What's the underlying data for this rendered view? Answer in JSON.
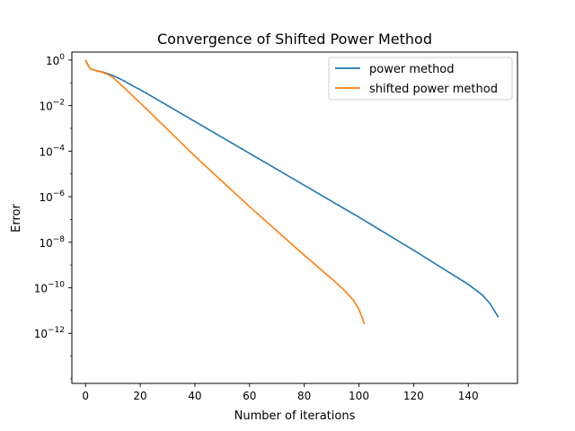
{
  "chart_data": {
    "type": "line",
    "title": "Convergence of Shifted Power Method",
    "xlabel": "Number of iterations",
    "ylabel": "Error",
    "xlim": [
      -5,
      158
    ],
    "ylim_log10": [
      -14.2,
      0.35
    ],
    "yscale": "log",
    "grid": false,
    "legend_position": "top-right",
    "x_ticks": [
      0,
      20,
      40,
      60,
      80,
      100,
      120,
      140
    ],
    "x_tick_labels": [
      "0",
      "20",
      "40",
      "60",
      "80",
      "100",
      "120",
      "140"
    ],
    "y_ticks_log10": [
      0,
      -2,
      -4,
      -6,
      -8,
      -10,
      -12
    ],
    "y_tick_labels": [
      {
        "base": "10",
        "exp": "0"
      },
      {
        "base": "10",
        "exp": "−2"
      },
      {
        "base": "10",
        "exp": "−4"
      },
      {
        "base": "10",
        "exp": "−6"
      },
      {
        "base": "10",
        "exp": "−8"
      },
      {
        "base": "10",
        "exp": "−10"
      },
      {
        "base": "10",
        "exp": "−12"
      }
    ],
    "series": [
      {
        "name": "power method",
        "color": "#1f77b4",
        "x": [
          0,
          1,
          2,
          4,
          6,
          8,
          10,
          12,
          14,
          16,
          18,
          20,
          30,
          40,
          60,
          80,
          100,
          120,
          140,
          145,
          148,
          150,
          151
        ],
        "y_log10": [
          0.0,
          -0.25,
          -0.4,
          -0.47,
          -0.52,
          -0.59,
          -0.68,
          -0.79,
          -0.91,
          -1.05,
          -1.18,
          -1.3,
          -2.0,
          -2.7,
          -4.1,
          -5.5,
          -6.9,
          -8.35,
          -9.85,
          -10.3,
          -10.7,
          -11.1,
          -11.3
        ]
      },
      {
        "name": "shifted power method",
        "color": "#ff7f0e",
        "x": [
          0,
          1,
          2,
          4,
          6,
          8,
          10,
          12,
          14,
          16,
          18,
          20,
          30,
          40,
          60,
          80,
          90,
          95,
          98,
          100,
          101,
          102
        ],
        "y_log10": [
          0.0,
          -0.25,
          -0.4,
          -0.47,
          -0.53,
          -0.62,
          -0.77,
          -0.98,
          -1.2,
          -1.43,
          -1.66,
          -1.88,
          -3.05,
          -4.22,
          -6.44,
          -8.57,
          -9.6,
          -10.15,
          -10.55,
          -10.95,
          -11.25,
          -11.6
        ]
      }
    ]
  }
}
